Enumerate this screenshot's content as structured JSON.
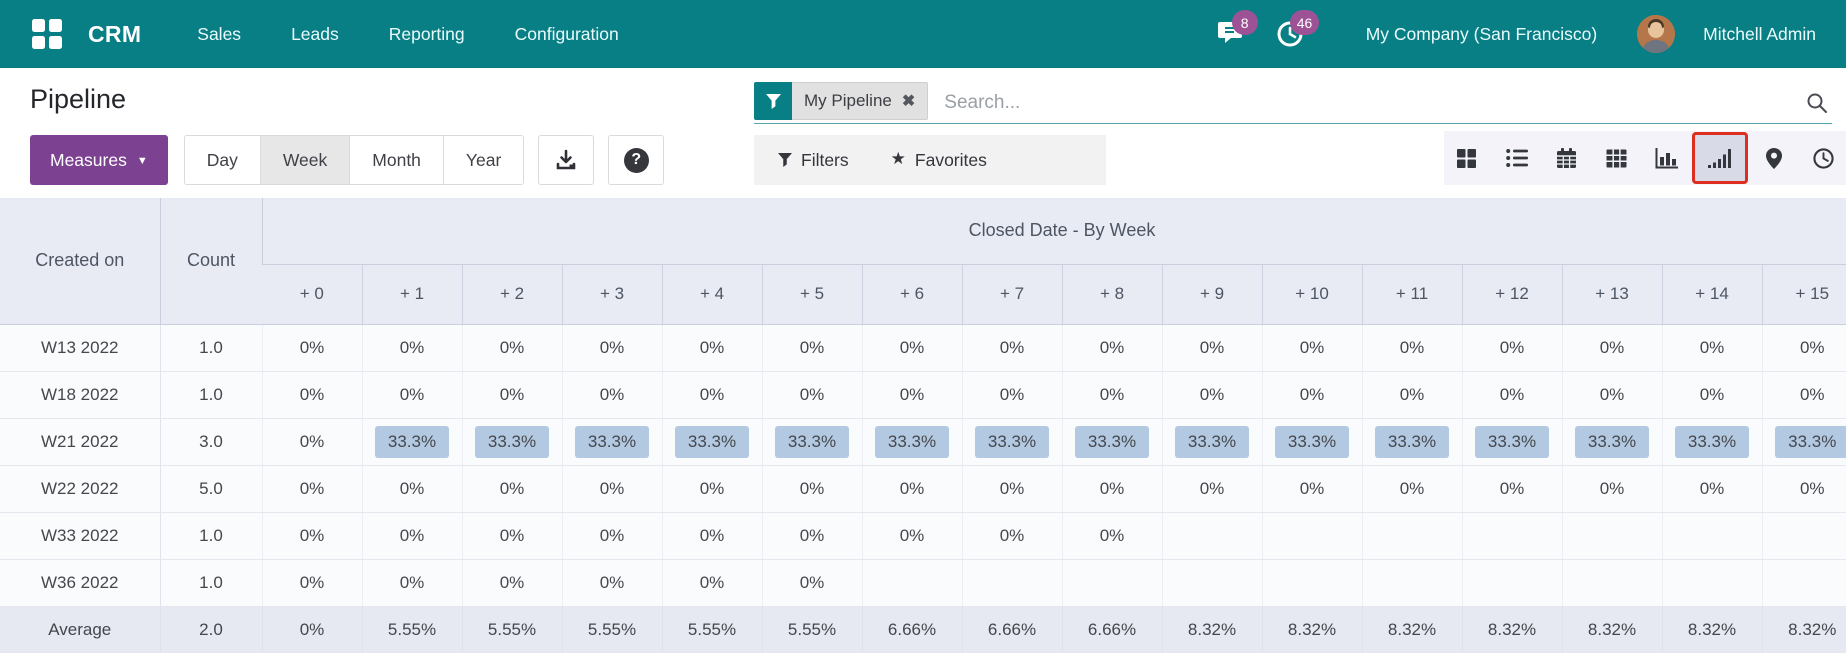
{
  "navbar": {
    "brand": "CRM",
    "menu_items": [
      "Sales",
      "Leads",
      "Reporting",
      "Configuration"
    ],
    "messages_badge": "8",
    "activities_badge": "46",
    "company": "My Company (San Francisco)",
    "user": "Mitchell Admin"
  },
  "control_panel": {
    "title": "Pipeline",
    "search": {
      "facet_label": "My Pipeline",
      "placeholder": "Search..."
    },
    "measures_label": "Measures",
    "ranges": [
      {
        "label": "Day",
        "active": false
      },
      {
        "label": "Week",
        "active": true
      },
      {
        "label": "Month",
        "active": false
      },
      {
        "label": "Year",
        "active": false
      }
    ],
    "filters_label": "Filters",
    "favorites_label": "Favorites"
  },
  "view_switcher": {
    "views": [
      "kanban",
      "list",
      "calendar",
      "pivot",
      "graph",
      "cohort",
      "map",
      "activity"
    ],
    "active_view": "cohort",
    "active_outline_color": "#dc2f1f"
  },
  "table": {
    "row_header": "Created on",
    "count_header": "Count",
    "group_header": "Closed Date - By Week",
    "offset_columns": [
      "+ 0",
      "+ 1",
      "+ 2",
      "+ 3",
      "+ 4",
      "+ 5",
      "+ 6",
      "+ 7",
      "+ 8",
      "+ 9",
      "+ 10",
      "+ 11",
      "+ 12",
      "+ 13",
      "+ 14",
      "+ 15"
    ],
    "highlight_color": "#b3c9e2",
    "rows": [
      {
        "label": "W13 2022",
        "count": "1.0",
        "values": [
          "0%",
          "0%",
          "0%",
          "0%",
          "0%",
          "0%",
          "0%",
          "0%",
          "0%",
          "0%",
          "0%",
          "0%",
          "0%",
          "0%",
          "0%",
          "0%"
        ]
      },
      {
        "label": "W18 2022",
        "count": "1.0",
        "values": [
          "0%",
          "0%",
          "0%",
          "0%",
          "0%",
          "0%",
          "0%",
          "0%",
          "0%",
          "0%",
          "0%",
          "0%",
          "0%",
          "0%",
          "0%",
          "0%"
        ]
      },
      {
        "label": "W21 2022",
        "count": "3.0",
        "values": [
          "0%",
          "33.3%",
          "33.3%",
          "33.3%",
          "33.3%",
          "33.3%",
          "33.3%",
          "33.3%",
          "33.3%",
          "33.3%",
          "33.3%",
          "33.3%",
          "33.3%",
          "33.3%",
          "33.3%",
          "33.3%"
        ]
      },
      {
        "label": "W22 2022",
        "count": "5.0",
        "values": [
          "0%",
          "0%",
          "0%",
          "0%",
          "0%",
          "0%",
          "0%",
          "0%",
          "0%",
          "0%",
          "0%",
          "0%",
          "0%",
          "0%",
          "0%",
          "0%"
        ]
      },
      {
        "label": "W33 2022",
        "count": "1.0",
        "values": [
          "0%",
          "0%",
          "0%",
          "0%",
          "0%",
          "0%",
          "0%",
          "0%",
          "0%",
          "",
          "",
          "",
          "",
          "",
          "",
          ""
        ]
      },
      {
        "label": "W36 2022",
        "count": "1.0",
        "values": [
          "0%",
          "0%",
          "0%",
          "0%",
          "0%",
          "0%",
          "",
          "",
          "",
          "",
          "",
          "",
          "",
          "",
          "",
          ""
        ]
      }
    ],
    "footer": {
      "label": "Average",
      "count": "2.0",
      "values": [
        "0%",
        "5.55%",
        "5.55%",
        "5.55%",
        "5.55%",
        "5.55%",
        "6.66%",
        "6.66%",
        "6.66%",
        "8.32%",
        "8.32%",
        "8.32%",
        "8.32%",
        "8.32%",
        "8.32%",
        "8.32%"
      ]
    }
  }
}
